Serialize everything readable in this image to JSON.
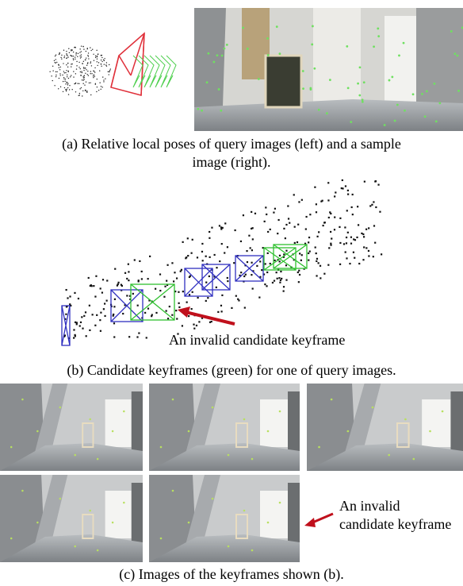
{
  "panel_a": {
    "caption": [
      "(a) Relative local poses of query images (left) and a sample",
      "image (right)."
    ]
  },
  "panel_b": {
    "annotation": "An invalid candidate keyframe",
    "caption": "(b) Candidate keyframes (green) for one of query images."
  },
  "panel_c": {
    "annotation": [
      "An invalid",
      "candidate keyframe"
    ],
    "caption": "(c) Images of the keyframes shown (b)."
  }
}
